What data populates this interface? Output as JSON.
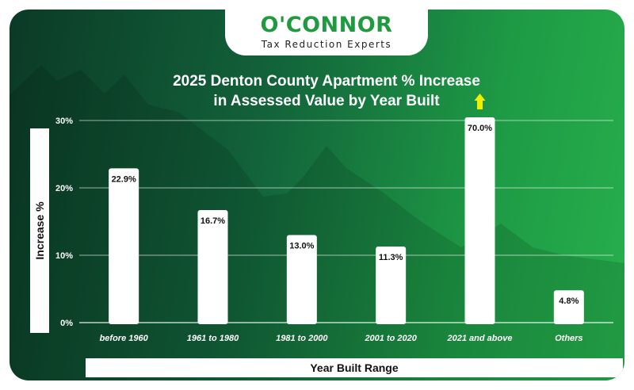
{
  "brand": {
    "logo_text": "O'CONNOR",
    "tagline": "Tax Reduction Experts",
    "accent": "#1f9a3f"
  },
  "chart_data": {
    "type": "bar",
    "title_lines": [
      "2025 Denton County Apartment % Increase",
      "in Assessed Value by Year Built"
    ],
    "xlabel": "Year Built Range",
    "ylabel": "Increase %",
    "ylim": [
      0,
      30
    ],
    "yticks": [
      0,
      10,
      20,
      30
    ],
    "ytick_labels": [
      "0%",
      "10%",
      "20%",
      "30%"
    ],
    "grid": true,
    "categories": [
      "before 1960",
      "1961 to 1980",
      "1981 to 2000",
      "2001 to 2020",
      "2021 and above",
      "Others"
    ],
    "values": [
      22.9,
      16.7,
      13.0,
      11.3,
      70.0,
      4.8
    ],
    "value_labels": [
      "22.9%",
      "16.7%",
      "13.0%",
      "11.3%",
      "70.0%",
      "4.8%"
    ],
    "overflow_marker": "up-arrow",
    "bar_color": "#ffffff",
    "arrow_color": "#f2ee00",
    "background_colors": [
      "#0b3a26",
      "#27b04d"
    ]
  }
}
